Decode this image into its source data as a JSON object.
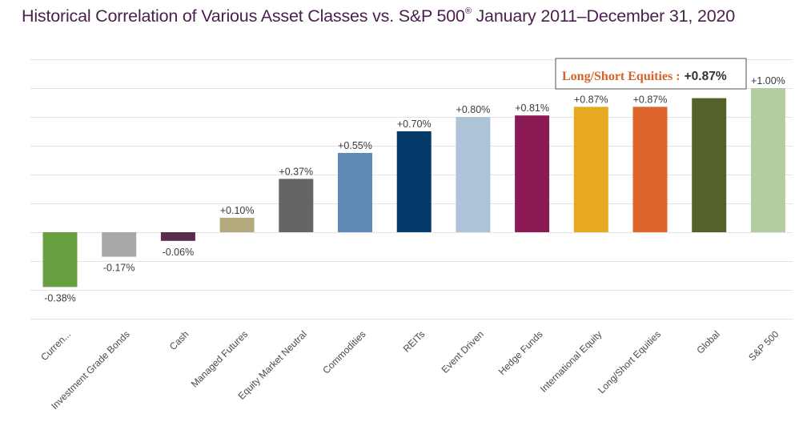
{
  "title": {
    "main": "Historical Correlation of Various Asset Classes vs. S&P 500",
    "sup": "®",
    "range": " January 2011–December 31, 2020"
  },
  "chart_data": {
    "type": "bar",
    "title": "Historical Correlation of Various Asset Classes vs. S&P 500® January 2011–December 31, 2020",
    "xlabel": "",
    "ylabel": "",
    "ylim": [
      -0.6,
      1.2
    ],
    "grid": true,
    "categories": [
      "Curren...",
      "Investment Grade Bonds",
      "Cash",
      "Managed Futures",
      "Equity Market Neutral",
      "Commodities",
      "REITs",
      "Event Driven",
      "Hedge Funds",
      "International Equity",
      "Long/Short Equities",
      "Global",
      "S&P 500"
    ],
    "values": [
      -0.38,
      -0.17,
      -0.06,
      0.1,
      0.37,
      0.55,
      0.7,
      0.8,
      0.81,
      0.87,
      0.87,
      0.93,
      1.0
    ],
    "labels": [
      "-0.38%",
      "-0.17%",
      "-0.06%",
      "+0.10%",
      "+0.37%",
      "+0.55%",
      "+0.70%",
      "+0.80%",
      "+0.81%",
      "+0.87%",
      "+0.87%",
      "",
      "+1.00%"
    ],
    "colors": [
      "#66a041",
      "#a7a8aa",
      "#5b2a4f",
      "#b5aa7e",
      "#646567",
      "#5f8ab5",
      "#053b6b",
      "#adc3d8",
      "#8c1b55",
      "#e8a922",
      "#dd662d",
      "#52622a",
      "#b3cd9e"
    ]
  },
  "callout": {
    "label": "Long/Short Equities :",
    "value": "+0.87%"
  }
}
